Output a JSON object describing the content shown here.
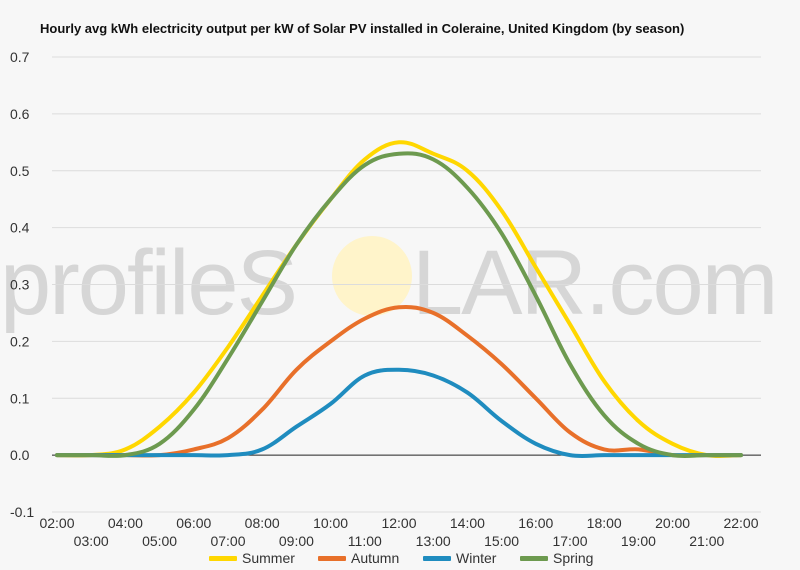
{
  "chart_data": {
    "type": "line",
    "title": "Hourly avg kWh electricity output per kW of Solar PV installed in Coleraine, United Kingdom (by season)",
    "xlabel": "",
    "ylabel": "",
    "ylim": [
      -0.1,
      0.7
    ],
    "yticks": [
      "-0.1",
      "0.0",
      "0.1",
      "0.2",
      "0.3",
      "0.4",
      "0.5",
      "0.6",
      "0.7"
    ],
    "x": [
      "02:00",
      "03:00",
      "04:00",
      "05:00",
      "06:00",
      "07:00",
      "08:00",
      "09:00",
      "10:00",
      "11:00",
      "12:00",
      "13:00",
      "14:00",
      "15:00",
      "16:00",
      "17:00",
      "18:00",
      "19:00",
      "20:00",
      "21:00",
      "22:00"
    ],
    "grid": true,
    "legend": "bottom",
    "series": [
      {
        "name": "Summer",
        "color": "#ffd700",
        "values": [
          0,
          0,
          0.01,
          0.05,
          0.11,
          0.19,
          0.28,
          0.37,
          0.45,
          0.52,
          0.55,
          0.53,
          0.5,
          0.43,
          0.33,
          0.23,
          0.13,
          0.06,
          0.02,
          0,
          0
        ]
      },
      {
        "name": "Autumn",
        "color": "#e8702a",
        "values": [
          0,
          0,
          0,
          0,
          0.01,
          0.03,
          0.08,
          0.15,
          0.2,
          0.24,
          0.26,
          0.25,
          0.21,
          0.16,
          0.1,
          0.04,
          0.01,
          0.01,
          0,
          0,
          0
        ]
      },
      {
        "name": "Winter",
        "color": "#1f8cbf",
        "values": [
          0,
          0,
          0,
          0,
          0,
          0,
          0.01,
          0.05,
          0.09,
          0.14,
          0.15,
          0.14,
          0.11,
          0.06,
          0.02,
          0,
          0,
          0,
          0,
          0,
          0
        ]
      },
      {
        "name": "Spring",
        "color": "#6d9a4f",
        "values": [
          0,
          0,
          0,
          0.02,
          0.08,
          0.17,
          0.27,
          0.37,
          0.45,
          0.51,
          0.53,
          0.52,
          0.47,
          0.39,
          0.28,
          0.16,
          0.07,
          0.02,
          0,
          0,
          0
        ]
      }
    ]
  },
  "watermark": {
    "text_before": "profileS",
    "text_after": "LAR.com"
  }
}
